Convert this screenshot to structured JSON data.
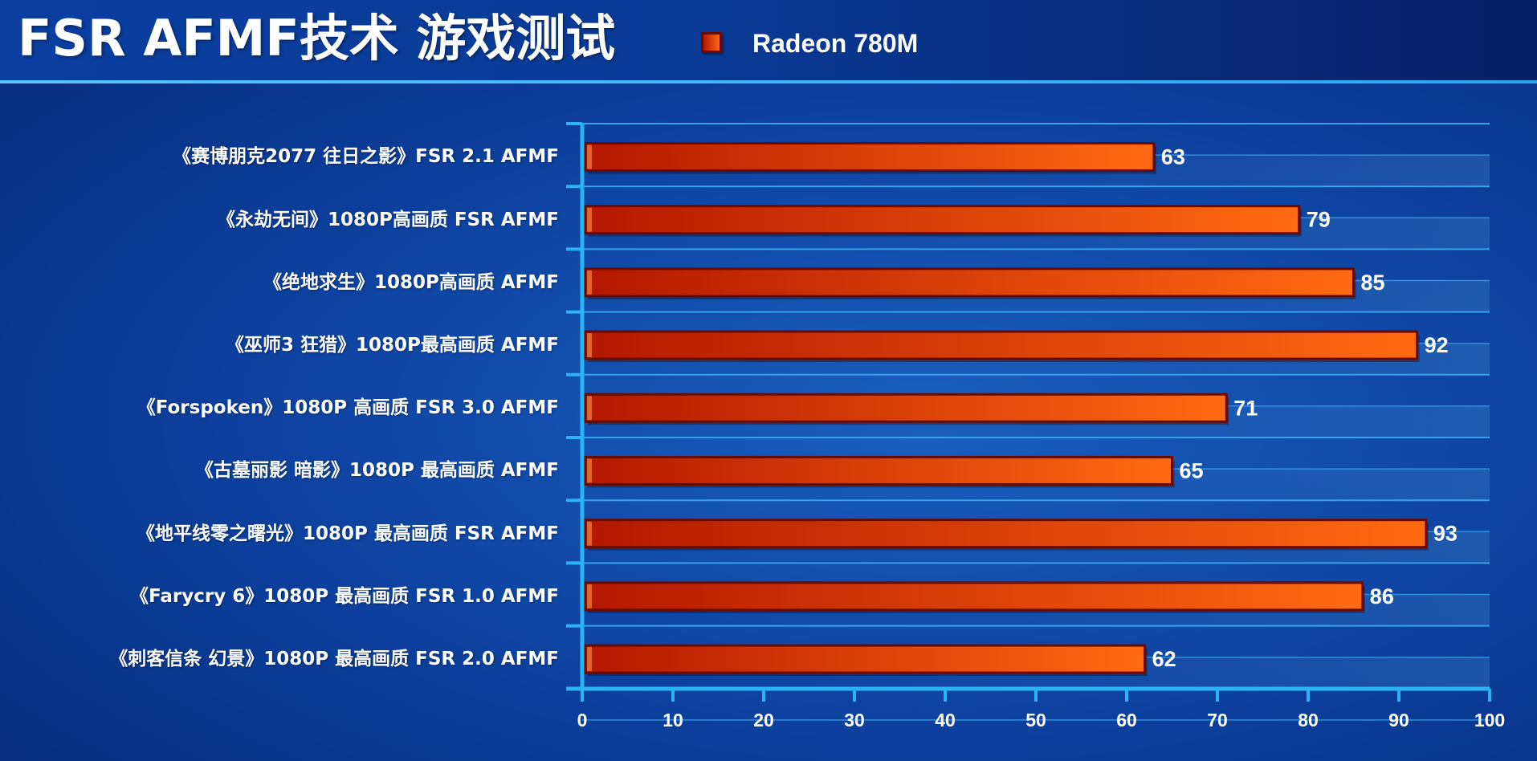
{
  "header": {
    "title": "FSR AFMF技术 游戏测试"
  },
  "legend": {
    "label": "Radeon 780M"
  },
  "colors": {
    "bar_start": "#b31800",
    "bar_end": "#ff6a12",
    "bar_border": "#6a0a00",
    "axis": "#2ab4f4",
    "grid": "#3aa0e8"
  },
  "chart_data": {
    "type": "bar",
    "orientation": "horizontal",
    "categories": [
      "《赛博朋克2077 往日之影》FSR 2.1 AFMF",
      "《永劫无间》1080P高画质 FSR AFMF",
      "《绝地求生》1080P高画质 AFMF",
      "《巫师3 狂猎》1080P最高画质 AFMF",
      "《Forspoken》1080P 高画质 FSR 3.0 AFMF",
      "《古墓丽影 暗影》1080P 最高画质 AFMF",
      "《地平线零之曙光》1080P 最高画质 FSR AFMF",
      "《Farycry 6》1080P 最高画质 FSR 1.0 AFMF",
      "《刺客信条 幻景》1080P 最高画质 FSR 2.0 AFMF"
    ],
    "series": [
      {
        "name": "Radeon 780M",
        "values": [
          63,
          79,
          85,
          92,
          71,
          65,
          93,
          86,
          62
        ]
      }
    ],
    "xlim": [
      0,
      100
    ],
    "xticks": [
      "0",
      "10",
      "20",
      "30",
      "40",
      "50",
      "60",
      "70",
      "80",
      "90",
      "100"
    ],
    "grid": true,
    "legend_position": "top"
  }
}
